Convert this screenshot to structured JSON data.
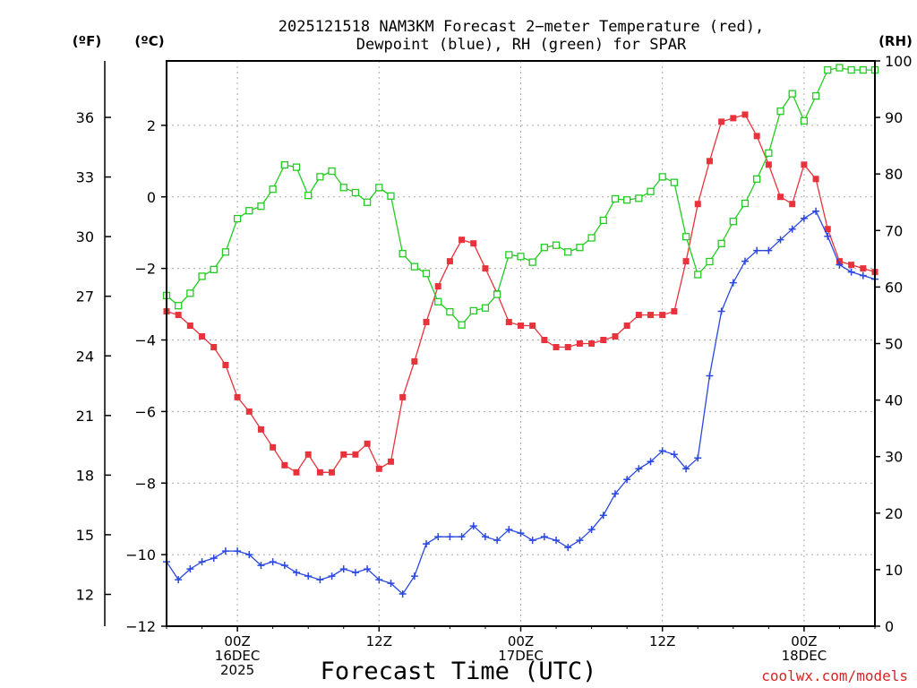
{
  "chart_data": {
    "type": "line",
    "title_line1": "2025121518 NAM3KM Forecast 2−meter Temperature (red),",
    "title_line2": "Dewpoint (blue), RH (green) for SPAR",
    "axis_units": {
      "fahrenheit": "(ºF)",
      "celsius": "(ºC)",
      "rh": "(RH)"
    },
    "xlabel": "Forecast Time (UTC)",
    "credit": "coolwx.com/models",
    "x_range_hours": [
      0,
      60
    ],
    "y_celsius_range": [
      -12,
      3.8
    ],
    "y_rh_range": [
      0,
      100
    ],
    "celsius_ticks": [
      {
        "v": 2,
        "label": "2"
      },
      {
        "v": 0,
        "label": "0"
      },
      {
        "v": -2,
        "label": "−2"
      },
      {
        "v": -4,
        "label": "−4"
      },
      {
        "v": -6,
        "label": "−6"
      },
      {
        "v": -8,
        "label": "−8"
      },
      {
        "v": -10,
        "label": "−10"
      },
      {
        "v": -12,
        "label": "−12"
      }
    ],
    "fahrenheit_ticks": [
      {
        "v": 36,
        "label": "36"
      },
      {
        "v": 33,
        "label": "33"
      },
      {
        "v": 30,
        "label": "30"
      },
      {
        "v": 27,
        "label": "27"
      },
      {
        "v": 24,
        "label": "24"
      },
      {
        "v": 21,
        "label": "21"
      },
      {
        "v": 18,
        "label": "18"
      },
      {
        "v": 15,
        "label": "15"
      },
      {
        "v": 12,
        "label": "12"
      }
    ],
    "rh_ticks": [
      {
        "v": 100,
        "label": "100"
      },
      {
        "v": 90,
        "label": "90"
      },
      {
        "v": 80,
        "label": "80"
      },
      {
        "v": 70,
        "label": "70"
      },
      {
        "v": 60,
        "label": "60"
      },
      {
        "v": 50,
        "label": "50"
      },
      {
        "v": 40,
        "label": "40"
      },
      {
        "v": 30,
        "label": "30"
      },
      {
        "v": 20,
        "label": "20"
      },
      {
        "v": 10,
        "label": "10"
      },
      {
        "v": 0,
        "label": "0"
      }
    ],
    "x_ticks": [
      {
        "h": 6,
        "lines": [
          "00Z",
          "16DEC",
          "2025"
        ]
      },
      {
        "h": 18,
        "lines": [
          "12Z"
        ]
      },
      {
        "h": 30,
        "lines": [
          "00Z",
          "17DEC"
        ]
      },
      {
        "h": 42,
        "lines": [
          "12Z"
        ]
      },
      {
        "h": 54,
        "lines": [
          "00Z",
          "18DEC"
        ]
      }
    ],
    "series": [
      {
        "name": "2-meter Temperature",
        "color": "#e8323c",
        "marker": "filled-square",
        "x": [
          0,
          1,
          2,
          3,
          4,
          5,
          6,
          7,
          8,
          9,
          10,
          11,
          12,
          13,
          14,
          15,
          16,
          17,
          18,
          19,
          20,
          21,
          22,
          23,
          24,
          25,
          26,
          27,
          28,
          29,
          30,
          31,
          32,
          33,
          34,
          35,
          36,
          37,
          38,
          39,
          40,
          41,
          42,
          43,
          44,
          45,
          46,
          47,
          48,
          49,
          50,
          51,
          52,
          53,
          54,
          55,
          56,
          57,
          58,
          59,
          60
        ],
        "values": [
          -3.2,
          -3.3,
          -3.6,
          -3.9,
          -4.2,
          -4.7,
          -5.6,
          -6.0,
          -6.5,
          -7.0,
          -7.5,
          -7.7,
          -7.2,
          -7.7,
          -7.7,
          -7.2,
          -7.2,
          -6.9,
          -7.6,
          -7.4,
          -5.6,
          -4.6,
          -3.5,
          -2.5,
          -1.8,
          -1.2,
          -1.3,
          -2.0,
          -2.7,
          -3.5,
          -3.6,
          -3.6,
          -4.0,
          -4.2,
          -4.2,
          -4.1,
          -4.1,
          -4.0,
          -3.9,
          -3.6,
          -3.3,
          -3.3,
          -3.3,
          -3.2,
          -1.8,
          -0.2,
          1.0,
          2.1,
          2.2,
          2.3,
          1.7,
          0.9,
          0.0,
          -0.2,
          0.9,
          0.5,
          -0.9,
          -1.8,
          -1.9,
          -2.0,
          -2.1
        ]
      },
      {
        "name": "Dewpoint",
        "color": "#2a47e0",
        "marker": "plus",
        "x": [
          0,
          1,
          2,
          3,
          4,
          5,
          6,
          7,
          8,
          9,
          10,
          11,
          12,
          13,
          14,
          15,
          16,
          17,
          18,
          19,
          20,
          21,
          22,
          23,
          24,
          25,
          26,
          27,
          28,
          29,
          30,
          31,
          32,
          33,
          34,
          35,
          36,
          37,
          38,
          39,
          40,
          41,
          42,
          43,
          44,
          45,
          46,
          47,
          48,
          49,
          50,
          51,
          52,
          53,
          54,
          55,
          56,
          57,
          58,
          59,
          60
        ],
        "values": [
          -10.2,
          -10.7,
          -10.4,
          -10.2,
          -10.1,
          -9.9,
          -9.9,
          -10.0,
          -10.3,
          -10.2,
          -10.3,
          -10.5,
          -10.6,
          -10.7,
          -10.6,
          -10.4,
          -10.5,
          -10.4,
          -10.7,
          -10.8,
          -11.1,
          -10.6,
          -9.7,
          -9.5,
          -9.5,
          -9.5,
          -9.2,
          -9.5,
          -9.6,
          -9.3,
          -9.4,
          -9.6,
          -9.5,
          -9.6,
          -9.8,
          -9.6,
          -9.3,
          -8.9,
          -8.3,
          -7.9,
          -7.6,
          -7.4,
          -7.1,
          -7.2,
          -7.6,
          -7.3,
          -5.0,
          -3.2,
          -2.4,
          -1.8,
          -1.5,
          -1.5,
          -1.2,
          -0.9,
          -0.6,
          -0.4,
          -1.1,
          -1.9,
          -2.1,
          -2.2,
          -2.3
        ]
      },
      {
        "name": "RH",
        "color": "#22cc22",
        "marker": "open-square",
        "x": [
          0,
          1,
          2,
          3,
          4,
          5,
          6,
          7,
          8,
          9,
          10,
          11,
          12,
          13,
          14,
          15,
          16,
          17,
          18,
          19,
          20,
          21,
          22,
          23,
          24,
          25,
          26,
          27,
          28,
          29,
          30,
          31,
          32,
          33,
          34,
          35,
          36,
          37,
          38,
          39,
          40,
          41,
          42,
          43,
          44,
          45,
          46,
          47,
          48,
          49,
          50,
          51,
          52,
          53,
          54,
          55,
          56,
          57,
          58,
          59,
          60
        ],
        "rh": [
          58.5,
          56.7,
          58.9,
          61.9,
          63.1,
          66.2,
          72.1,
          73.5,
          74.3,
          77.3,
          81.6,
          81.2,
          76.2,
          79.5,
          80.5,
          77.6,
          76.7,
          75.0,
          77.6,
          76.1,
          65.9,
          63.6,
          62.4,
          57.4,
          55.6,
          53.3,
          55.8,
          56.3,
          58.7,
          65.7,
          65.4,
          64.4,
          67.0,
          67.4,
          66.2,
          67.0,
          68.7,
          71.8,
          75.6,
          75.4,
          75.7,
          76.9,
          79.5,
          78.5,
          68.9,
          62.2,
          64.5,
          67.7,
          71.6,
          74.8,
          79.1,
          83.7,
          91.1,
          94.2,
          89.4,
          93.8,
          98.4,
          98.8,
          98.4,
          98.4,
          98.4
        ]
      }
    ]
  }
}
